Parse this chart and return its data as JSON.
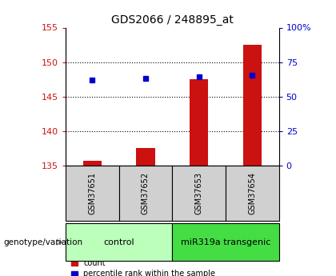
{
  "title": "GDS2066 / 248895_at",
  "samples": [
    "GSM37651",
    "GSM37652",
    "GSM37653",
    "GSM37654"
  ],
  "groups": [
    "control",
    "control",
    "miR319a transgenic",
    "miR319a transgenic"
  ],
  "bar_values": [
    135.7,
    137.5,
    147.5,
    152.5
  ],
  "dot_values": [
    147.4,
    147.6,
    147.9,
    148.1
  ],
  "ylim_left": [
    135,
    155
  ],
  "ylim_right": [
    0,
    100
  ],
  "yticks_left": [
    135,
    140,
    145,
    150,
    155
  ],
  "yticks_right": [
    0,
    25,
    50,
    75,
    100
  ],
  "ytick_labels_right": [
    "0",
    "25",
    "50",
    "75",
    "100%"
  ],
  "bar_color": "#cc1111",
  "dot_color": "#0000cc",
  "bar_width": 0.35,
  "group_colors": {
    "control": "#bbffbb",
    "miR319a transgenic": "#44dd44"
  },
  "genotype_label": "genotype/variation",
  "legend_items": [
    {
      "label": "count",
      "color": "#cc1111"
    },
    {
      "label": "percentile rank within the sample",
      "color": "#0000cc"
    }
  ],
  "background_color": "#ffffff",
  "plot_bg_color": "#ffffff",
  "axis_label_color_left": "#cc1111",
  "axis_label_color_right": "#0000cc",
  "sample_box_color": "#d0d0d0",
  "arrow_color": "#888888"
}
